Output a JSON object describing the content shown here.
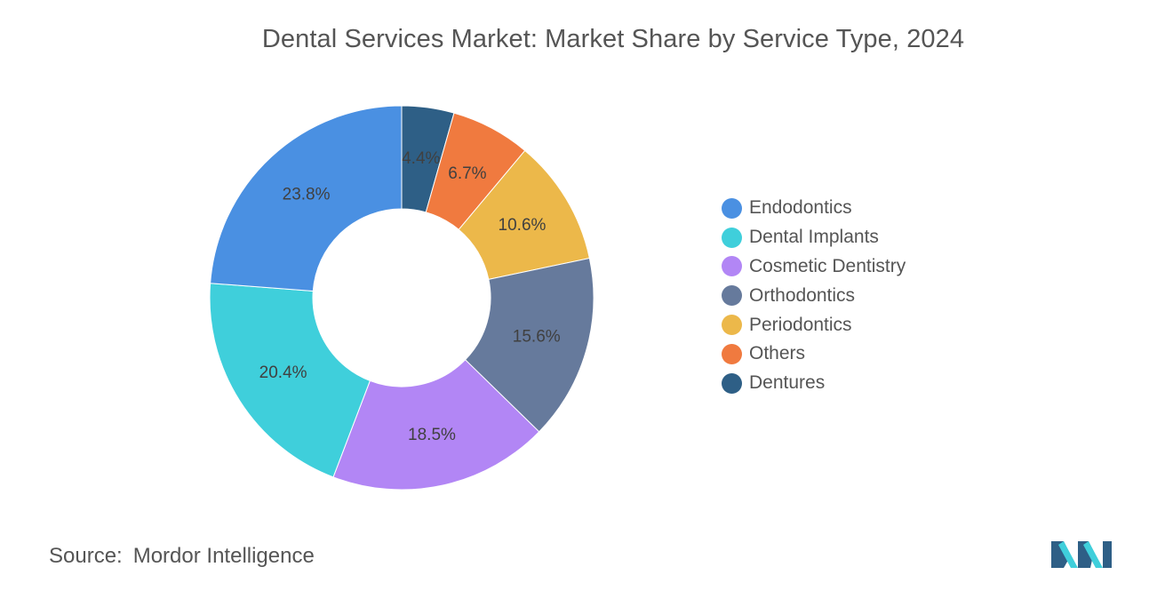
{
  "chart_data": {
    "type": "pie",
    "variant": "donut",
    "title": "Dental Services Market: Market Share by Service Type, 2024",
    "slices": [
      {
        "label": "Dentures",
        "value": 4.4,
        "display": "4.4%",
        "color": "#2e5f86"
      },
      {
        "label": "Others",
        "value": 6.7,
        "display": "6.7%",
        "color": "#f07a3f"
      },
      {
        "label": "Periodontics",
        "value": 10.6,
        "display": "10.6%",
        "color": "#ecb84a"
      },
      {
        "label": "Orthodontics",
        "value": 15.6,
        "display": "15.6%",
        "color": "#667a9c"
      },
      {
        "label": "Cosmetic Dentistry",
        "value": 18.5,
        "display": "18.5%",
        "color": "#b286f5"
      },
      {
        "label": "Dental Implants",
        "value": 20.4,
        "display": "20.4%",
        "color": "#3fcfdb"
      },
      {
        "label": "Endodontics",
        "value": 23.8,
        "display": "23.8%",
        "color": "#4a90e2"
      }
    ],
    "legend_placement": "right",
    "legend": [
      {
        "label": "Endodontics",
        "color": "#4a90e2"
      },
      {
        "label": "Dental Implants",
        "color": "#3fcfdb"
      },
      {
        "label": "Cosmetic Dentistry",
        "color": "#b286f5"
      },
      {
        "label": "Orthodontics",
        "color": "#667a9c"
      },
      {
        "label": "Periodontics",
        "color": "#ecb84a"
      },
      {
        "label": "Others",
        "color": "#f07a3f"
      },
      {
        "label": "Dentures",
        "color": "#2e5f86"
      }
    ]
  },
  "footer": {
    "source_key": "Source:",
    "source_value": "Mordor Intelligence"
  },
  "logo": {
    "icon": "mordor-intelligence-logo-icon",
    "colors": [
      "#2e5f86",
      "#3fcfdb"
    ]
  }
}
